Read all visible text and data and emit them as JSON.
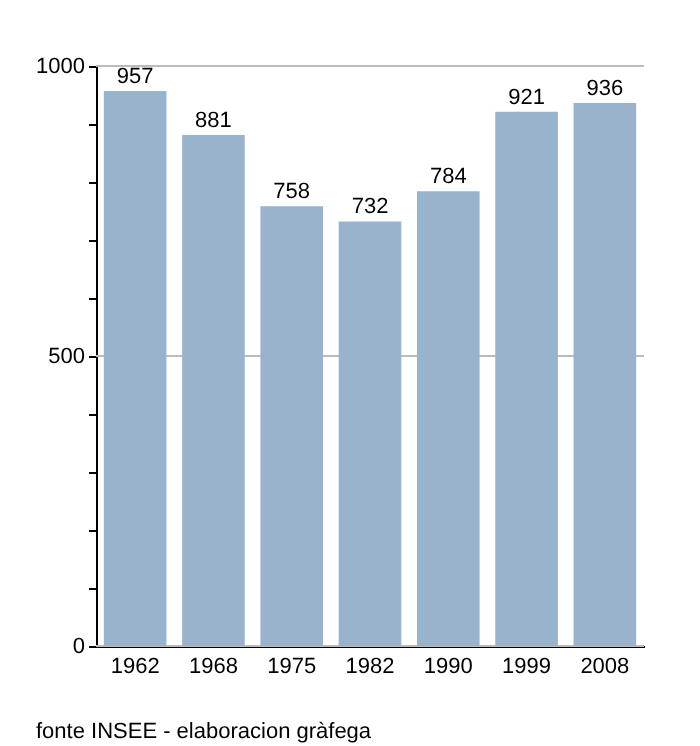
{
  "chart_data": {
    "type": "bar",
    "categories": [
      "1962",
      "1968",
      "1975",
      "1982",
      "1990",
      "1999",
      "2008"
    ],
    "values": [
      957,
      881,
      758,
      732,
      784,
      921,
      936
    ],
    "color": "#9ab3cc",
    "data_labels": true,
    "ylim": [
      0,
      1000
    ],
    "yticks": [
      0,
      {
        "value": 100,
        "label": null
      },
      {
        "value": 200,
        "label": null
      },
      {
        "value": 300,
        "label": null
      },
      {
        "value": 400,
        "label": null
      },
      500,
      {
        "value": 600,
        "label": null
      },
      {
        "value": 700,
        "label": null
      },
      {
        "value": 800,
        "label": null
      },
      {
        "value": 900,
        "label": null
      },
      1000
    ],
    "grid": "y",
    "annotations": [
      "fonte INSEE - elaboracion gràfega"
    ]
  }
}
